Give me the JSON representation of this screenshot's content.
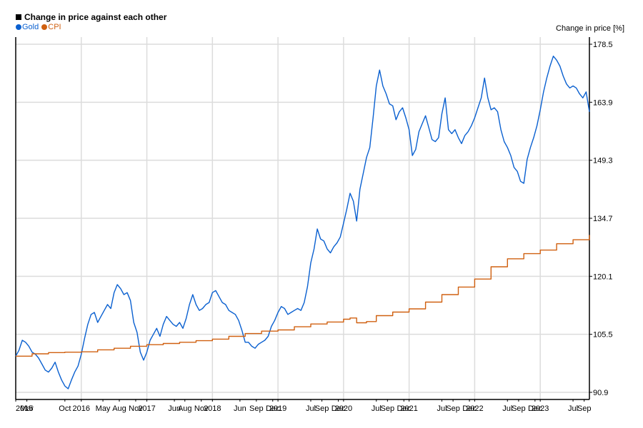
{
  "chart_data": {
    "type": "line",
    "title": "Change in price against each other",
    "ylabel": "Change in price [%]",
    "ylim": [
      90.9,
      178.5
    ],
    "y_ticks": [
      90.9,
      105.5,
      120.1,
      134.7,
      149.3,
      163.9,
      178.5
    ],
    "y_tick_labels": [
      "90.9",
      "105.5",
      "120.1",
      "134.7",
      "149.3",
      "163.9",
      "178.5"
    ],
    "x_ticks": [
      {
        "label": "2015",
        "t": 2015.0
      },
      {
        "label": "Mar",
        "t": 2015.17
      },
      {
        "label": "Oct",
        "t": 2015.75
      },
      {
        "label": "2016",
        "t": 2016.0
      },
      {
        "label": "May",
        "t": 2016.33
      },
      {
        "label": "Aug",
        "t": 2016.58
      },
      {
        "label": "Nov",
        "t": 2016.83
      },
      {
        "label": "2017",
        "t": 2017.0
      },
      {
        "label": "Jun",
        "t": 2017.42
      },
      {
        "label": "Aug",
        "t": 2017.58
      },
      {
        "label": "Nov",
        "t": 2017.83
      },
      {
        "label": "2018",
        "t": 2018.0
      },
      {
        "label": "Jun",
        "t": 2018.42
      },
      {
        "label": "Sep",
        "t": 2018.67
      },
      {
        "label": "Dec",
        "t": 2018.92
      },
      {
        "label": "2019",
        "t": 2019.0
      },
      {
        "label": "Jul",
        "t": 2019.5
      },
      {
        "label": "Sep",
        "t": 2019.67
      },
      {
        "label": "Dec",
        "t": 2019.92
      },
      {
        "label": "2020",
        "t": 2020.0
      },
      {
        "label": "Jul",
        "t": 2020.5
      },
      {
        "label": "Sep",
        "t": 2020.67
      },
      {
        "label": "Dec",
        "t": 2020.92
      },
      {
        "label": "2021",
        "t": 2021.0
      },
      {
        "label": "Jul",
        "t": 2021.5
      },
      {
        "label": "Sep",
        "t": 2021.67
      },
      {
        "label": "Dec",
        "t": 2021.92
      },
      {
        "label": "2022",
        "t": 2022.0
      },
      {
        "label": "Jul",
        "t": 2022.5
      },
      {
        "label": "Sep",
        "t": 2022.67
      },
      {
        "label": "Dec",
        "t": 2022.92
      },
      {
        "label": "2023",
        "t": 2023.0
      },
      {
        "label": "Jul",
        "t": 2023.5
      },
      {
        "label": "Sep",
        "t": 2023.67
      }
    ],
    "x_gridlines": [
      2016,
      2017,
      2018,
      2019,
      2020,
      2021,
      2022,
      2023
    ],
    "xlim": [
      2015.0,
      2023.75
    ],
    "grid": true,
    "legend_position": "top-left",
    "series": [
      {
        "name": "Gold",
        "color": "#0a60d0",
        "x": [
          2015.0,
          2015.05,
          2015.1,
          2015.15,
          2015.2,
          2015.25,
          2015.3,
          2015.35,
          2015.4,
          2015.45,
          2015.5,
          2015.55,
          2015.6,
          2015.65,
          2015.7,
          2015.75,
          2015.8,
          2015.85,
          2015.9,
          2015.95,
          2016.0,
          2016.05,
          2016.1,
          2016.15,
          2016.2,
          2016.25,
          2016.3,
          2016.35,
          2016.4,
          2016.45,
          2016.5,
          2016.55,
          2016.6,
          2016.65,
          2016.7,
          2016.75,
          2016.8,
          2016.85,
          2016.9,
          2016.95,
          2017.0,
          2017.05,
          2017.1,
          2017.15,
          2017.2,
          2017.25,
          2017.3,
          2017.35,
          2017.4,
          2017.45,
          2017.5,
          2017.55,
          2017.6,
          2017.65,
          2017.7,
          2017.75,
          2017.8,
          2017.85,
          2017.9,
          2017.95,
          2018.0,
          2018.05,
          2018.1,
          2018.15,
          2018.2,
          2018.25,
          2018.3,
          2018.35,
          2018.4,
          2018.45,
          2018.5,
          2018.55,
          2018.6,
          2018.65,
          2018.7,
          2018.75,
          2018.8,
          2018.85,
          2018.9,
          2018.95,
          2019.0,
          2019.05,
          2019.1,
          2019.15,
          2019.2,
          2019.25,
          2019.3,
          2019.35,
          2019.4,
          2019.45,
          2019.5,
          2019.55,
          2019.6,
          2019.65,
          2019.7,
          2019.75,
          2019.8,
          2019.85,
          2019.9,
          2019.95,
          2020.0,
          2020.05,
          2020.1,
          2020.15,
          2020.2,
          2020.25,
          2020.3,
          2020.35,
          2020.4,
          2020.45,
          2020.5,
          2020.55,
          2020.6,
          2020.65,
          2020.7,
          2020.75,
          2020.8,
          2020.85,
          2020.9,
          2020.95,
          2021.0,
          2021.05,
          2021.1,
          2021.15,
          2021.2,
          2021.25,
          2021.3,
          2021.35,
          2021.4,
          2021.45,
          2021.5,
          2021.55,
          2021.6,
          2021.65,
          2021.7,
          2021.75,
          2021.8,
          2021.85,
          2021.9,
          2021.95,
          2022.0,
          2022.05,
          2022.1,
          2022.15,
          2022.2,
          2022.25,
          2022.3,
          2022.35,
          2022.4,
          2022.45,
          2022.5,
          2022.55,
          2022.6,
          2022.65,
          2022.7,
          2022.75,
          2022.8,
          2022.85,
          2022.9,
          2022.95,
          2023.0,
          2023.05,
          2023.1,
          2023.15,
          2023.2,
          2023.25,
          2023.3,
          2023.35,
          2023.4,
          2023.45,
          2023.5,
          2023.55,
          2023.6,
          2023.65,
          2023.7,
          2023.75
        ],
        "values": [
          100.0,
          101.5,
          104.0,
          103.5,
          102.5,
          101.0,
          100.5,
          99.5,
          98.0,
          96.5,
          96.0,
          97.0,
          98.5,
          96.0,
          94.0,
          92.5,
          91.8,
          94.0,
          96.0,
          97.5,
          100.5,
          104.5,
          108.0,
          110.5,
          111.0,
          108.5,
          110.0,
          111.5,
          113.0,
          112.0,
          116.0,
          118.0,
          117.0,
          115.5,
          116.0,
          114.0,
          108.5,
          106.0,
          101.0,
          99.0,
          101.0,
          104.0,
          105.5,
          107.0,
          105.0,
          108.0,
          110.0,
          109.0,
          108.0,
          107.5,
          108.5,
          107.0,
          109.5,
          113.0,
          115.5,
          113.0,
          111.5,
          112.0,
          113.0,
          113.5,
          116.0,
          116.5,
          115.0,
          113.5,
          113.0,
          111.5,
          111.0,
          110.5,
          109.0,
          106.5,
          103.5,
          103.5,
          102.5,
          102.0,
          103.0,
          103.5,
          104.0,
          105.0,
          107.5,
          109.0,
          111.0,
          112.5,
          112.0,
          110.5,
          111.0,
          111.5,
          112.0,
          111.5,
          113.5,
          117.5,
          123.5,
          127.0,
          132.0,
          129.5,
          129.0,
          127.0,
          126.0,
          127.5,
          128.5,
          130.0,
          133.5,
          137.0,
          141.0,
          139.0,
          134.0,
          142.0,
          146.0,
          150.0,
          152.5,
          160.0,
          168.0,
          172.0,
          168.0,
          166.0,
          163.5,
          163.0,
          159.5,
          161.5,
          162.5,
          160.0,
          157.0,
          150.5,
          152.0,
          156.5,
          158.5,
          160.5,
          157.5,
          154.5,
          154.0,
          155.0,
          161.0,
          165.0,
          157.0,
          156.0,
          157.0,
          155.0,
          153.5,
          155.5,
          156.5,
          158.0,
          160.0,
          162.5,
          165.0,
          170.0,
          165.0,
          162.0,
          162.5,
          161.5,
          157.0,
          154.0,
          152.5,
          150.5,
          147.5,
          146.5,
          144.0,
          143.5,
          149.5,
          152.5,
          155.0,
          158.0,
          162.0,
          166.5,
          170.0,
          173.0,
          175.5,
          174.5,
          173.0,
          170.5,
          168.5,
          167.5,
          168.0,
          167.5,
          166.0,
          165.0,
          166.5,
          161.5
        ]
      },
      {
        "name": "CPI",
        "color": "#d06010",
        "x": [
          2015.0,
          2015.25,
          2015.5,
          2015.75,
          2016.0,
          2016.25,
          2016.5,
          2016.75,
          2017.0,
          2017.25,
          2017.5,
          2017.75,
          2018.0,
          2018.25,
          2018.5,
          2018.75,
          2019.0,
          2019.25,
          2019.5,
          2019.75,
          2020.0,
          2020.1,
          2020.2,
          2020.35,
          2020.5,
          2020.75,
          2021.0,
          2021.25,
          2021.5,
          2021.75,
          2022.0,
          2022.25,
          2022.5,
          2022.75,
          2023.0,
          2023.25,
          2023.5,
          2023.75
        ],
        "values": [
          100.0,
          100.6,
          100.9,
          101.0,
          101.1,
          101.6,
          102.0,
          102.5,
          102.9,
          103.2,
          103.5,
          103.9,
          104.3,
          105.0,
          105.7,
          106.3,
          106.6,
          107.4,
          108.1,
          108.6,
          109.3,
          109.6,
          108.4,
          108.7,
          110.2,
          111.1,
          111.9,
          113.6,
          115.5,
          117.4,
          119.4,
          122.5,
          124.5,
          125.8,
          126.7,
          128.3,
          129.3,
          130.5
        ]
      }
    ]
  },
  "legend": [
    {
      "label": "Gold",
      "color": "#0a60d0"
    },
    {
      "label": "CPI",
      "color": "#d06010"
    }
  ]
}
